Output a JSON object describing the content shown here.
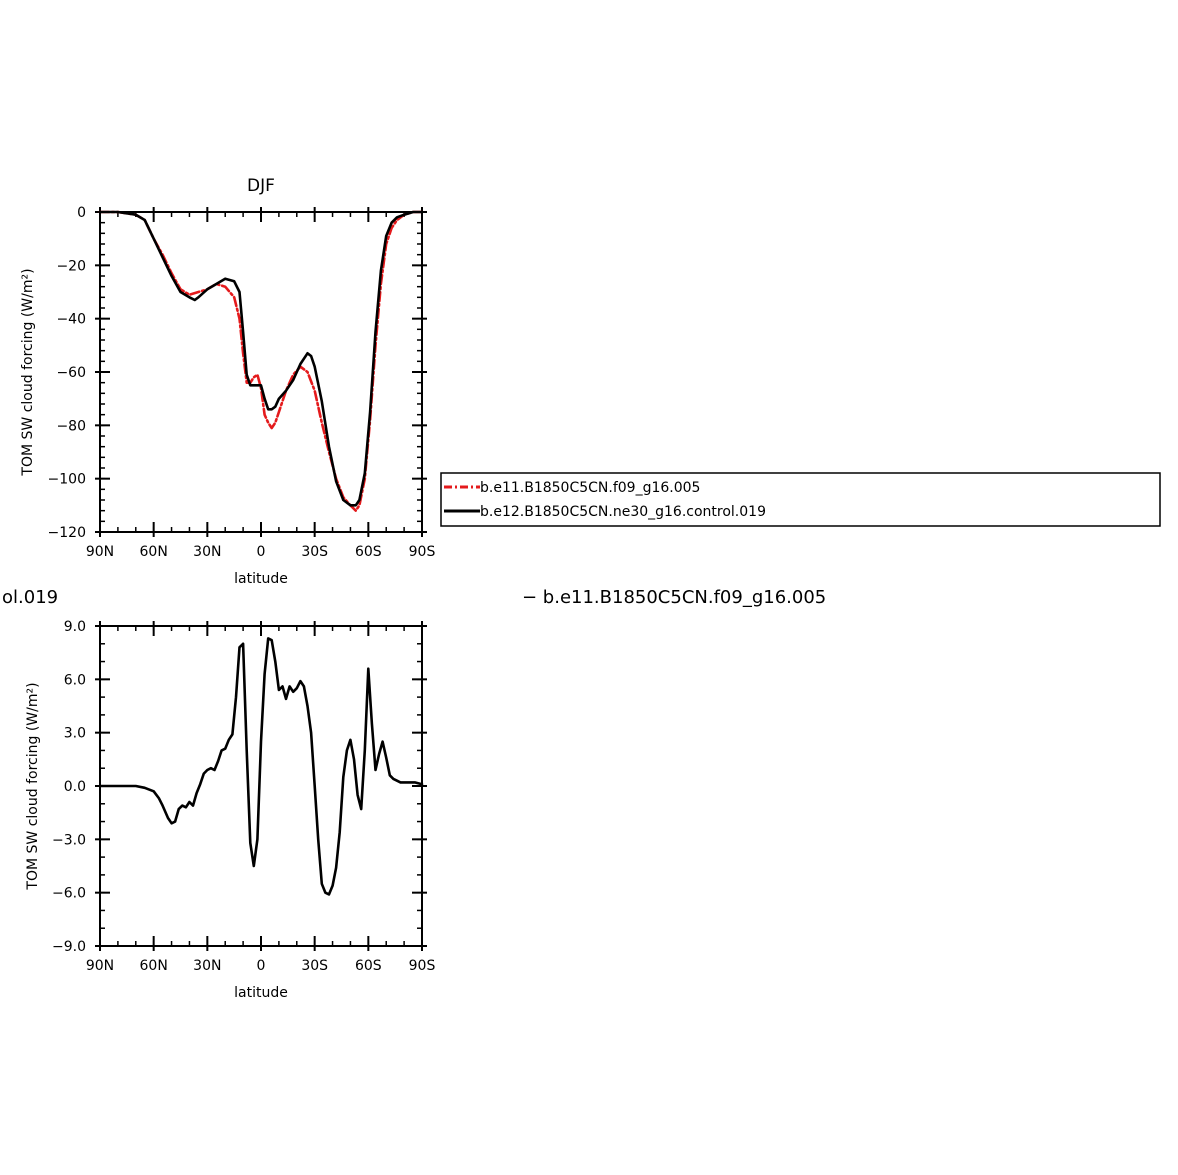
{
  "header": {
    "left_text": "ol.019",
    "right_text": "− b.e11.B1850C5CN.f09_g16.005"
  },
  "legend": {
    "entries": [
      {
        "label": "b.e11.B1850C5CN.f09_g16.005",
        "color": "#e41a1c",
        "dash": true
      },
      {
        "label": "b.e12.B1850C5CN.ne30_g16.control.019",
        "color": "#000000",
        "dash": false
      }
    ]
  },
  "chart_data": [
    {
      "type": "line",
      "title": "DJF",
      "xlabel": "latitude",
      "ylabel": "TOM SW cloud forcing (W/m²)",
      "xlim": [
        90,
        -90
      ],
      "ylim": [
        -120,
        0
      ],
      "x_ticks": [
        90,
        60,
        30,
        0,
        -30,
        -60,
        -90
      ],
      "x_tick_labels": [
        "90N",
        "60N",
        "30N",
        "0",
        "30S",
        "60S",
        "90S"
      ],
      "y_ticks": [
        0,
        -20,
        -40,
        -60,
        -80,
        -100,
        -120
      ],
      "y_tick_labels": [
        "0",
        "−20",
        "−40",
        "−60",
        "−80",
        "−100",
        "−120"
      ],
      "series": [
        {
          "name": "b.e11.B1850C5CN.f09_g16.005",
          "color": "#e41a1c",
          "dashed": true,
          "x": [
            90,
            80,
            70,
            65,
            60,
            55,
            50,
            45,
            40,
            35,
            30,
            25,
            20,
            15,
            12,
            10,
            8,
            6,
            4,
            2,
            0,
            -2,
            -4,
            -6,
            -8,
            -10,
            -14,
            -18,
            -22,
            -26,
            -30,
            -34,
            -38,
            -42,
            -46,
            -50,
            -53,
            -55,
            -58,
            -61,
            -64,
            -67,
            -70,
            -73,
            -76,
            -80,
            -85,
            -90
          ],
          "y": [
            0,
            0,
            -1,
            -3,
            -10,
            -16,
            -23,
            -29,
            -31,
            -30,
            -29,
            -27,
            -28,
            -32,
            -40,
            -53,
            -64,
            -64,
            -62,
            -61,
            -66,
            -76,
            -79,
            -81,
            -79,
            -75,
            -67,
            -61,
            -58,
            -60,
            -67,
            -79,
            -90,
            -100,
            -107,
            -110,
            -112,
            -110,
            -100,
            -78,
            -50,
            -27,
            -12,
            -6,
            -3,
            -1,
            0,
            0
          ]
        },
        {
          "name": "b.e12.B1850C5CN.ne30_g16.control.019",
          "color": "#000000",
          "dashed": false,
          "x": [
            90,
            80,
            70,
            65,
            60,
            55,
            50,
            45,
            40,
            37,
            35,
            30,
            25,
            20,
            15,
            12,
            10,
            8,
            6,
            4,
            2,
            0,
            -2,
            -4,
            -6,
            -8,
            -10,
            -14,
            -18,
            -22,
            -26,
            -28,
            -30,
            -34,
            -38,
            -42,
            -46,
            -50,
            -53,
            -55,
            -58,
            -61,
            -64,
            -67,
            -70,
            -73,
            -76,
            -80,
            -85,
            -90
          ],
          "y": [
            0,
            0,
            -1,
            -3,
            -10,
            -17,
            -24,
            -30,
            -32,
            -33,
            -32,
            -29,
            -27,
            -25,
            -26,
            -30,
            -45,
            -61,
            -65,
            -65,
            -65,
            -65,
            -70,
            -74,
            -74,
            -73,
            -70,
            -67,
            -63,
            -57,
            -53,
            -54,
            -58,
            -71,
            -88,
            -101,
            -108,
            -110,
            -110,
            -108,
            -98,
            -75,
            -45,
            -22,
            -9,
            -4,
            -2,
            -1,
            0,
            0
          ]
        }
      ]
    },
    {
      "type": "line",
      "title": "",
      "xlabel": "latitude",
      "ylabel": "TOM SW cloud forcing (W/m²)",
      "xlim": [
        90,
        -90
      ],
      "ylim": [
        -9,
        9
      ],
      "x_ticks": [
        90,
        60,
        30,
        0,
        -30,
        -60,
        -90
      ],
      "x_tick_labels": [
        "90N",
        "60N",
        "30N",
        "0",
        "30S",
        "60S",
        "90S"
      ],
      "y_ticks": [
        9,
        6,
        3,
        0,
        -3,
        -6,
        -9
      ],
      "y_tick_labels": [
        "9.0",
        "6.0",
        "3.0",
        "0.0",
        "−3.0",
        "−6.0",
        "−9.0"
      ],
      "series": [
        {
          "color": "#000000",
          "dashed": false,
          "x": [
            90,
            80,
            75,
            70,
            65,
            60,
            57,
            55,
            52,
            50,
            48,
            46,
            44,
            42,
            40,
            38,
            36,
            34,
            32,
            30,
            28,
            26,
            24,
            22,
            20,
            18,
            16,
            14,
            12,
            10,
            8,
            6,
            4,
            2,
            0,
            -2,
            -4,
            -6,
            -8,
            -10,
            -12,
            -14,
            -16,
            -18,
            -20,
            -22,
            -24,
            -26,
            -28,
            -30,
            -32,
            -34,
            -36,
            -38,
            -40,
            -42,
            -44,
            -46,
            -48,
            -50,
            -52,
            -54,
            -56,
            -58,
            -60,
            -62,
            -64,
            -66,
            -68,
            -70,
            -72,
            -74,
            -76,
            -78,
            -80,
            -83,
            -86,
            -90
          ],
          "y": [
            0,
            0,
            0,
            0,
            -0.1,
            -0.3,
            -0.7,
            -1.1,
            -1.8,
            -2.1,
            -2.0,
            -1.3,
            -1.1,
            -1.2,
            -0.9,
            -1.1,
            -0.4,
            0.1,
            0.7,
            0.9,
            1.0,
            0.9,
            1.4,
            2.0,
            2.1,
            2.6,
            2.9,
            5.0,
            7.8,
            8.0,
            2.0,
            -3.2,
            -4.5,
            -3.0,
            2.5,
            6.3,
            8.3,
            8.2,
            7.0,
            5.4,
            5.6,
            4.9,
            5.6,
            5.3,
            5.5,
            5.9,
            5.6,
            4.5,
            3.0,
            0.0,
            -3.0,
            -5.5,
            -6.0,
            -6.1,
            -5.6,
            -4.6,
            -2.6,
            0.5,
            2.0,
            2.6,
            1.5,
            -0.5,
            -1.3,
            2.0,
            6.6,
            3.5,
            0.9,
            1.8,
            2.5,
            1.6,
            0.6,
            0.4,
            0.3,
            0.2,
            0.2,
            0.2,
            0.2,
            0.1
          ]
        }
      ]
    }
  ]
}
